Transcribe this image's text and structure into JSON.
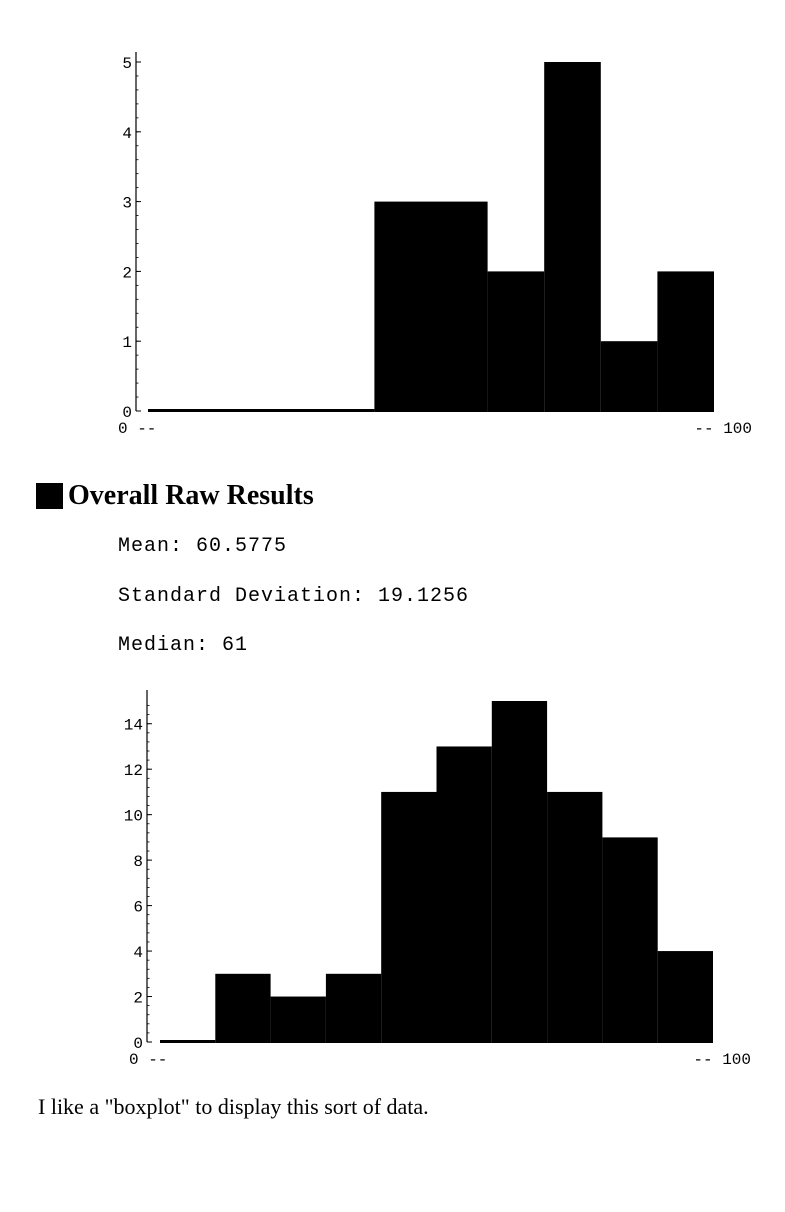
{
  "section": {
    "title": "Overall Raw Results"
  },
  "stats": {
    "mean": "Mean: 60.5775",
    "std": "Standard Deviation: 19.1256",
    "median": "Median: 61"
  },
  "caption": "I like a \"boxplot\" to display this sort of data.",
  "chart_data": [
    {
      "type": "bar",
      "title": "",
      "xlabel": "",
      "ylabel": "",
      "x_tick_labels": [
        "0 --",
        "-- 100"
      ],
      "bins": [
        {
          "x0": 0,
          "x1": 40,
          "value": 0
        },
        {
          "x0": 40,
          "x1": 50,
          "value": 3
        },
        {
          "x0": 50,
          "x1": 60,
          "value": 3
        },
        {
          "x0": 60,
          "x1": 70,
          "value": 2
        },
        {
          "x0": 70,
          "x1": 80,
          "value": 5
        },
        {
          "x0": 80,
          "x1": 90,
          "value": 1
        },
        {
          "x0": 90,
          "x1": 100,
          "value": 2
        }
      ],
      "xlim": [
        0,
        100
      ],
      "ylim": [
        0,
        5
      ],
      "yticks": [
        0,
        1,
        2,
        3,
        4,
        5
      ]
    },
    {
      "type": "bar",
      "title": "",
      "xlabel": "",
      "ylabel": "",
      "x_tick_labels": [
        "0 --",
        "-- 100"
      ],
      "bins": [
        {
          "x0": 0,
          "x1": 10,
          "value": 0
        },
        {
          "x0": 10,
          "x1": 20,
          "value": 3
        },
        {
          "x0": 20,
          "x1": 30,
          "value": 2
        },
        {
          "x0": 30,
          "x1": 40,
          "value": 3
        },
        {
          "x0": 40,
          "x1": 50,
          "value": 11
        },
        {
          "x0": 50,
          "x1": 60,
          "value": 13
        },
        {
          "x0": 60,
          "x1": 70,
          "value": 15
        },
        {
          "x0": 70,
          "x1": 80,
          "value": 11
        },
        {
          "x0": 80,
          "x1": 90,
          "value": 9
        },
        {
          "x0": 90,
          "x1": 100,
          "value": 4
        }
      ],
      "xlim": [
        0,
        100
      ],
      "ylim": [
        0,
        15
      ],
      "yticks": [
        0,
        2,
        4,
        6,
        8,
        10,
        12,
        14
      ]
    }
  ]
}
